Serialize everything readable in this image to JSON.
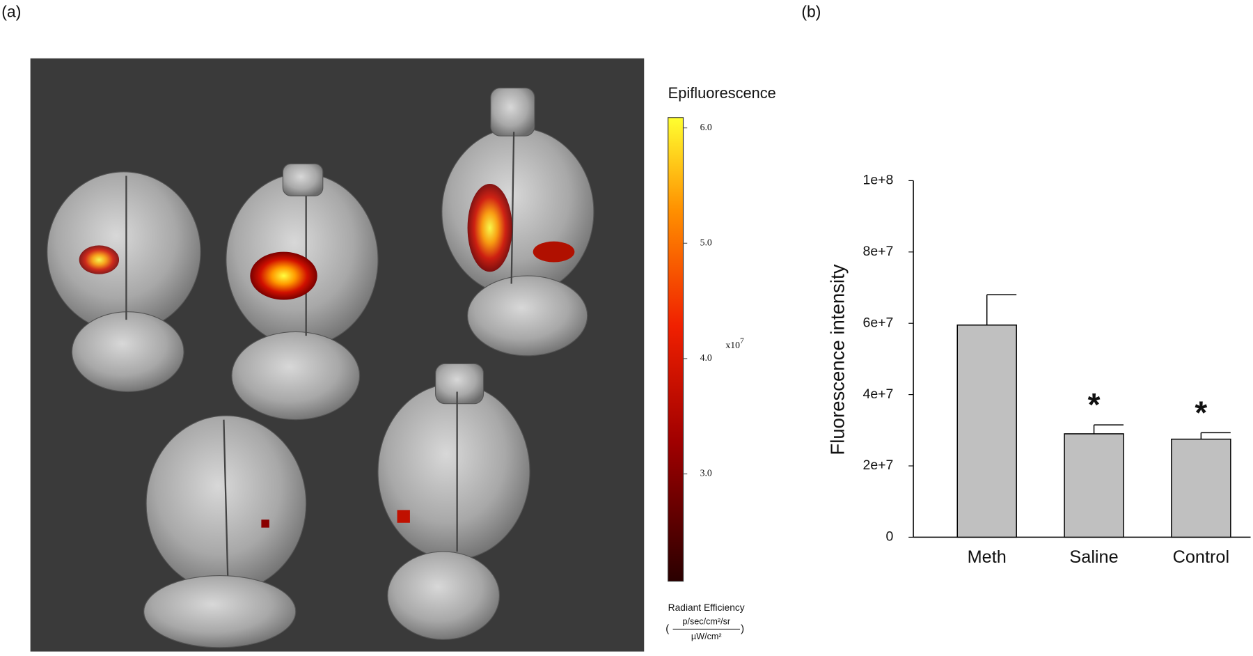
{
  "panel_labels": [
    "(a)",
    "(b)"
  ],
  "image_panel": {
    "colorbar": {
      "title": "Epifluorescence",
      "clim": [
        2.07,
        6.09
      ],
      "ticks": [
        {
          "value": 3,
          "label": "3.0"
        },
        {
          "value": 4,
          "label": "4.0"
        },
        {
          "value": 5,
          "label": "5.0"
        },
        {
          "value": 6,
          "label": "6.0"
        }
      ],
      "multiplier": "x10",
      "multiplier_exponent": "7",
      "unit_title": "Radiant Efficiency",
      "unit_numerator": "p/sec/cm²/sr",
      "unit_denominator": "µW/cm²"
    }
  },
  "chart_data": {
    "type": "bar",
    "ylabel": "Fluorescence intensity",
    "categories": [
      "Meth",
      "Saline",
      "Control"
    ],
    "values": [
      59500000,
      29000000,
      27500000
    ],
    "errors": [
      8500000,
      2500000,
      1800000
    ],
    "value_annotations": [
      null,
      "*",
      "*"
    ],
    "color": "#c0c0c0",
    "ylim": [
      0,
      100000000
    ],
    "yticks": [
      0,
      {
        "value": 20000000,
        "label": "2e+7"
      },
      {
        "value": 40000000,
        "label": "4e+7"
      },
      {
        "value": 60000000,
        "label": "6e+7"
      },
      {
        "value": 80000000,
        "label": "8e+7"
      },
      {
        "value": 100000000,
        "label": "1e+8"
      }
    ]
  }
}
